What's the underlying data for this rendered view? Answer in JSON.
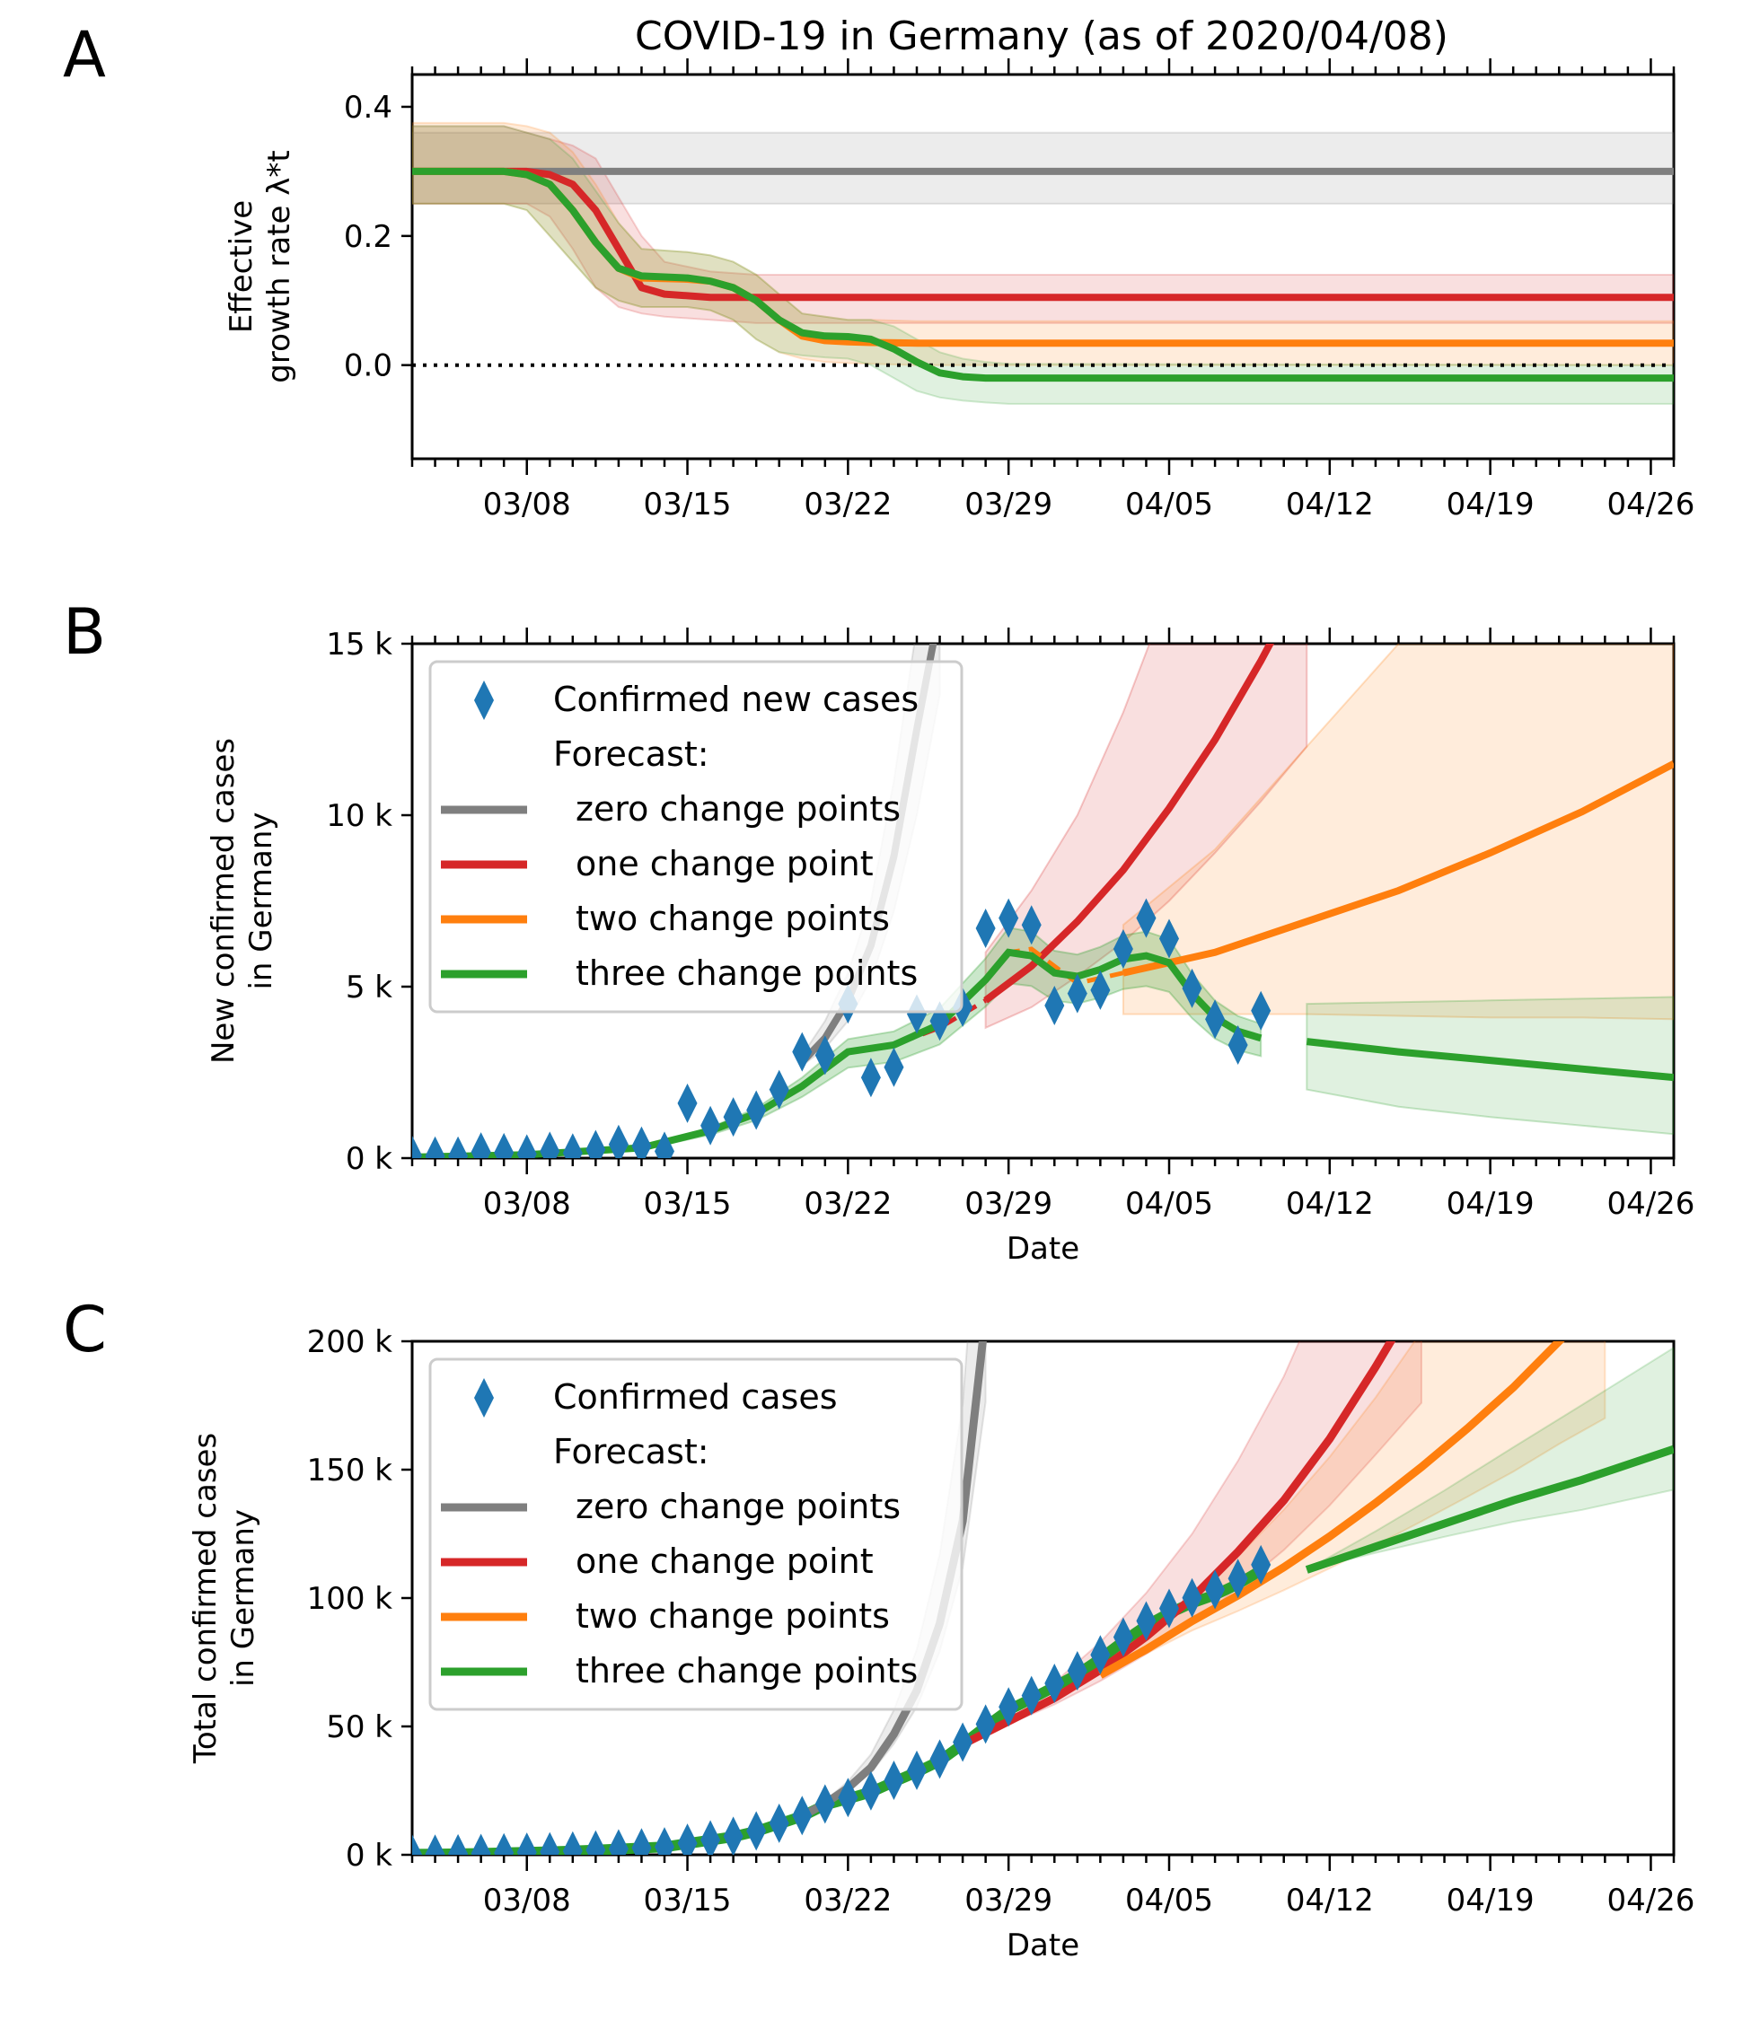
{
  "figure_title": "COVID-19 in Germany (as of 2020/04/08)",
  "colors": {
    "data": "#1f77b4",
    "zero": "#7f7f7f",
    "one": "#d62728",
    "two": "#ff7f0e",
    "three": "#2ca02c"
  },
  "chart_data": [
    {
      "panel": "A",
      "type": "line",
      "title": "COVID-19 in Germany (as of 2020/04/08)",
      "xlabel": "",
      "ylabel_line1": "Effective",
      "ylabel_line2": "growth rate λ*t",
      "x_start": "03/03",
      "x_end": "04/27",
      "x_ticks": [
        "03/08",
        "03/15",
        "03/22",
        "03/29",
        "04/05",
        "04/12",
        "04/19",
        "04/26"
      ],
      "y_ticks": [
        "0.4",
        "0.2",
        "0.0"
      ],
      "ylim": [
        -0.145,
        0.45
      ],
      "reference_line": {
        "value": 0.0,
        "style": "dotted"
      },
      "series": [
        {
          "name": "zero change points",
          "key": "zero",
          "x_days": [
            0,
            55
          ],
          "values": [
            0.3,
            0.3
          ],
          "lower": [
            0.25,
            0.25
          ],
          "upper": [
            0.36,
            0.36
          ]
        },
        {
          "name": "one change point",
          "key": "one",
          "x_days": [
            0,
            4,
            5,
            6,
            7,
            8,
            9,
            10,
            11,
            13,
            15,
            20,
            55
          ],
          "values": [
            0.3,
            0.3,
            0.3,
            0.295,
            0.28,
            0.24,
            0.18,
            0.12,
            0.11,
            0.105,
            0.105,
            0.105,
            0.105
          ],
          "lower": [
            0.25,
            0.25,
            0.25,
            0.23,
            0.18,
            0.12,
            0.09,
            0.08,
            0.075,
            0.07,
            0.065,
            0.065,
            0.065
          ],
          "upper": [
            0.37,
            0.37,
            0.36,
            0.35,
            0.34,
            0.32,
            0.26,
            0.2,
            0.16,
            0.145,
            0.14,
            0.14,
            0.14
          ]
        },
        {
          "name": "two change points",
          "key": "two",
          "x_days": [
            0,
            4,
            5,
            6,
            7,
            8,
            9,
            10,
            12,
            13,
            14,
            15,
            16,
            17,
            18,
            19,
            20,
            22,
            25,
            55
          ],
          "values": [
            0.3,
            0.3,
            0.295,
            0.28,
            0.24,
            0.19,
            0.15,
            0.135,
            0.133,
            0.13,
            0.12,
            0.1,
            0.07,
            0.045,
            0.038,
            0.036,
            0.035,
            0.034,
            0.034,
            0.034
          ],
          "lower": [
            0.25,
            0.25,
            0.24,
            0.2,
            0.16,
            0.12,
            0.1,
            0.09,
            0.09,
            0.085,
            0.07,
            0.04,
            0.02,
            0.01,
            0.005,
            0.003,
            0.002,
            0.0,
            0.0,
            0.0
          ],
          "upper": [
            0.375,
            0.375,
            0.37,
            0.36,
            0.33,
            0.28,
            0.22,
            0.18,
            0.175,
            0.17,
            0.16,
            0.14,
            0.11,
            0.08,
            0.075,
            0.07,
            0.07,
            0.068,
            0.068,
            0.068
          ]
        },
        {
          "name": "three change points",
          "key": "three",
          "x_days": [
            0,
            4,
            5,
            6,
            7,
            8,
            9,
            10,
            12,
            13,
            14,
            15,
            16,
            17,
            18,
            19,
            20,
            21,
            22,
            23,
            24,
            25,
            26,
            55
          ],
          "values": [
            0.3,
            0.3,
            0.295,
            0.28,
            0.24,
            0.19,
            0.15,
            0.138,
            0.135,
            0.13,
            0.12,
            0.1,
            0.07,
            0.05,
            0.045,
            0.044,
            0.04,
            0.025,
            0.005,
            -0.012,
            -0.018,
            -0.02,
            -0.02,
            -0.02
          ],
          "lower": [
            0.25,
            0.25,
            0.24,
            0.2,
            0.16,
            0.12,
            0.1,
            0.09,
            0.09,
            0.085,
            0.07,
            0.04,
            0.02,
            0.015,
            0.012,
            0.01,
            0.0,
            -0.02,
            -0.04,
            -0.05,
            -0.055,
            -0.058,
            -0.06,
            -0.06
          ],
          "upper": [
            0.37,
            0.37,
            0.36,
            0.35,
            0.32,
            0.27,
            0.22,
            0.18,
            0.175,
            0.17,
            0.16,
            0.14,
            0.11,
            0.08,
            0.075,
            0.07,
            0.07,
            0.06,
            0.04,
            0.02,
            0.01,
            0.005,
            0.002,
            0.0
          ]
        }
      ]
    },
    {
      "panel": "B",
      "type": "line",
      "xlabel": "Date",
      "ylabel_line1": "New confirmed cases",
      "ylabel_line2": "in Germany",
      "x_start": "03/03",
      "x_end": "04/27",
      "x_ticks": [
        "03/08",
        "03/15",
        "03/22",
        "03/29",
        "04/05",
        "04/12",
        "04/19",
        "04/26"
      ],
      "y_ticks": [
        "0 k",
        "5 k",
        "10 k",
        "15 k"
      ],
      "ylim": [
        0,
        15000
      ],
      "legend": {
        "placement": "upper-left",
        "entries": [
          "Confirmed new cases",
          "Forecast:",
          "zero change points",
          "one change point",
          "two change points",
          "three change points"
        ]
      },
      "observed": {
        "name": "Confirmed new cases",
        "x_days": [
          0,
          1,
          2,
          3,
          4,
          5,
          6,
          7,
          8,
          9,
          10,
          11,
          12,
          13,
          14,
          15,
          16,
          17,
          18,
          19,
          20,
          21,
          22,
          23,
          24,
          25,
          26,
          27,
          28,
          29,
          30,
          31,
          32,
          33,
          34,
          35,
          36
        ],
        "values": [
          80,
          60,
          60,
          180,
          160,
          120,
          200,
          150,
          250,
          400,
          350,
          200,
          1600,
          950,
          1200,
          1400,
          2000,
          3100,
          3000,
          4500,
          2350,
          2650,
          4200,
          4000,
          4400,
          6700,
          7000,
          6800,
          4450,
          4800,
          4900,
          6100,
          7000,
          6400,
          4950,
          4050,
          3300
        ]
      },
      "observed_last_point": {
        "x_day": 37,
        "value": 4300
      },
      "series": [
        {
          "name": "zero change points",
          "key": "zero",
          "fit_x": [
            17,
            18,
            19,
            20,
            21,
            22,
            23
          ],
          "fit": [
            2800,
            3500,
            4600,
            6200,
            8800,
            12500,
            16000
          ],
          "lower": [
            2700,
            3200,
            4000,
            5200,
            7200,
            10000,
            13500
          ],
          "upper": [
            3000,
            4000,
            5400,
            7500,
            11000,
            15500,
            20000
          ]
        },
        {
          "name": "one change point",
          "key": "one",
          "fit_x": [
            0,
            5,
            10,
            13,
            15,
            17,
            19,
            21,
            23,
            25
          ],
          "fit": [
            30,
            100,
            300,
            800,
            1300,
            2100,
            3100,
            3300,
            3800,
            4600
          ],
          "forecast_x": [
            25,
            27,
            29,
            31,
            33,
            35,
            37,
            39
          ],
          "forecast": [
            4600,
            5600,
            6900,
            8400,
            10200,
            12200,
            14500,
            17000
          ],
          "lower": [
            3800,
            4400,
            5300,
            6300,
            7500,
            8900,
            10400,
            12000
          ],
          "upper": [
            6000,
            7800,
            10000,
            13000,
            16500,
            21000,
            26000,
            32000
          ]
        },
        {
          "name": "two change points",
          "key": "two",
          "fit_x": [
            0,
            5,
            10,
            13,
            15,
            17,
            19,
            21,
            23,
            25,
            26,
            27,
            29,
            31
          ],
          "fit": [
            30,
            100,
            300,
            800,
            1300,
            2100,
            3100,
            3300,
            3900,
            5200,
            6000,
            6100,
            5100,
            5400
          ],
          "forecast_x": [
            31,
            35,
            39,
            43,
            47,
            51,
            55
          ],
          "forecast": [
            5400,
            6000,
            6900,
            7800,
            8900,
            10100,
            11500
          ],
          "lower": [
            4200,
            4200,
            4200,
            4150,
            4100,
            4100,
            4050
          ],
          "upper": [
            6800,
            9000,
            12000,
            15000,
            19000,
            24000,
            30000
          ]
        },
        {
          "name": "three change points",
          "key": "three",
          "fit_x": [
            0,
            5,
            10,
            13,
            15,
            17,
            19,
            21,
            23,
            25,
            26,
            27,
            28,
            29,
            30,
            31,
            32,
            33,
            34,
            35,
            36,
            37
          ],
          "fit": [
            30,
            100,
            300,
            800,
            1300,
            2100,
            3100,
            3300,
            3900,
            5200,
            6000,
            5900,
            5400,
            5300,
            5500,
            5800,
            5900,
            5700,
            4800,
            4100,
            3700,
            3500
          ],
          "forecast_x": [
            39,
            43,
            47,
            51,
            55
          ],
          "forecast": [
            3400,
            3100,
            2850,
            2600,
            2350
          ],
          "lower": [
            2000,
            1500,
            1200,
            950,
            700
          ],
          "upper": [
            4500,
            4550,
            4600,
            4650,
            4700
          ]
        }
      ]
    },
    {
      "panel": "C",
      "type": "line",
      "xlabel": "Date",
      "ylabel_line1": "Total confirmed cases",
      "ylabel_line2": "in Germany",
      "x_start": "03/03",
      "x_end": "04/27",
      "x_ticks": [
        "03/08",
        "03/15",
        "03/22",
        "03/29",
        "04/05",
        "04/12",
        "04/19",
        "04/26"
      ],
      "y_ticks": [
        "0 k",
        "50 k",
        "100 k",
        "150 k",
        "200 k"
      ],
      "ylim": [
        0,
        200000
      ],
      "legend": {
        "placement": "upper-left",
        "entries": [
          "Confirmed cases",
          "Forecast:",
          "zero change points",
          "one change point",
          "two change points",
          "three change points"
        ]
      },
      "observed": {
        "name": "Confirmed cases",
        "x_days": [
          0,
          1,
          2,
          3,
          4,
          5,
          6,
          7,
          8,
          9,
          10,
          11,
          12,
          13,
          14,
          15,
          16,
          17,
          18,
          19,
          20,
          21,
          22,
          23,
          24,
          25,
          26,
          27,
          28,
          29,
          30,
          31,
          32,
          33,
          34,
          35,
          36,
          37
        ],
        "values": [
          200,
          260,
          400,
          530,
          800,
          1000,
          1200,
          1500,
          1900,
          2300,
          2700,
          3100,
          4500,
          5800,
          7200,
          9300,
          12300,
          15300,
          19800,
          22300,
          24900,
          29000,
          32900,
          37300,
          43900,
          50900,
          57600,
          62000,
          66800,
          71700,
          77900,
          84800,
          91100,
          96000,
          100100,
          103300,
          107600,
          113000
        ]
      },
      "series": [
        {
          "name": "zero change points",
          "key": "zero",
          "x_days": [
            17,
            18,
            19,
            20,
            21,
            22,
            23,
            24,
            25
          ],
          "values": [
            15000,
            20000,
            26000,
            34000,
            47000,
            64000,
            90000,
            130000,
            210000
          ]
        },
        {
          "name": "one change point",
          "key": "one",
          "x_days": [
            24,
            26,
            28,
            30,
            32,
            34,
            36,
            38,
            40,
            42,
            44
          ],
          "values": [
            43000,
            52000,
            61000,
            72000,
            85000,
            100000,
            118000,
            138000,
            162000,
            190000,
            220000
          ]
        },
        {
          "name": "two change points",
          "key": "two",
          "x_days": [
            30,
            32,
            34,
            36,
            38,
            40,
            42,
            44,
            46,
            48,
            50,
            52
          ],
          "values": [
            70000,
            80000,
            91000,
            101000,
            112000,
            124000,
            137000,
            151000,
            166000,
            182000,
            200000,
            218000
          ]
        },
        {
          "name": "three change points",
          "key": "three",
          "x_days": [
            39,
            42,
            45,
            48,
            51,
            55
          ],
          "values": [
            111000,
            120000,
            129000,
            138000,
            146000,
            158000
          ]
        }
      ]
    }
  ]
}
